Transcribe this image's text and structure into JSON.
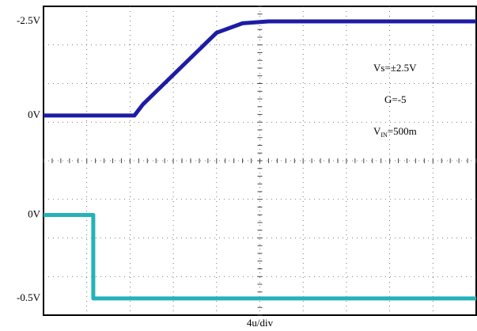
{
  "chart_data": [
    {
      "type": "line",
      "x_label": "4u/div",
      "x": [
        0,
        2.1,
        2.3,
        4.0,
        4.6,
        5.2,
        10
      ],
      "series": [
        {
          "color": "#1c1ca6",
          "values": [
            0,
            0,
            -0.3,
            -2.2,
            -2.45,
            -2.5,
            -2.5
          ]
        }
      ],
      "xlim": [
        0,
        10
      ],
      "ylim": [
        5.3,
        -2.9
      ],
      "yticks": [
        {
          "value": -2.5,
          "label": "-2.5V"
        },
        {
          "value": 0,
          "label": "0V"
        }
      ],
      "annotations": [
        "Vs=±2.5V",
        "G=-5",
        [
          "V",
          "IN",
          "=500m"
        ]
      ]
    },
    {
      "type": "line",
      "x": [
        0,
        1.15,
        1.15,
        10
      ],
      "series": [
        {
          "color": "#22b3b8",
          "values": [
            0,
            0,
            -0.5,
            -0.5
          ]
        }
      ],
      "xlim": [
        0,
        10
      ],
      "ylim": [
        -0.6,
        1.25
      ],
      "yticks": [
        {
          "value": 0,
          "label": "0V"
        },
        {
          "value": -0.5,
          "label": "-0.5V"
        }
      ]
    }
  ]
}
